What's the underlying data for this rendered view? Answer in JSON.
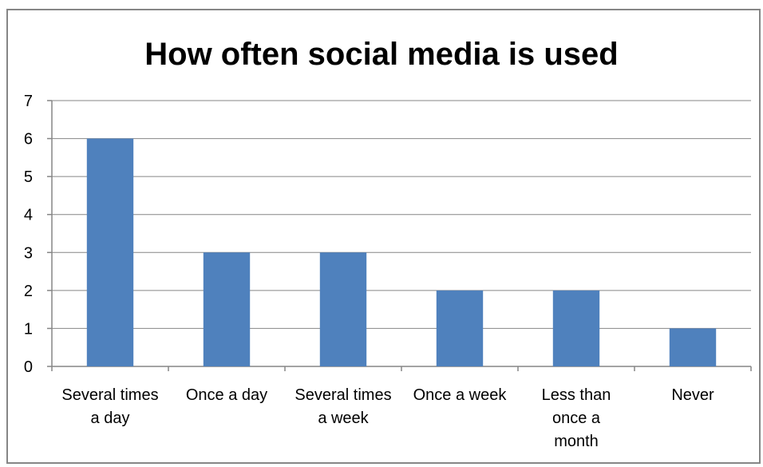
{
  "chart_data": {
    "type": "bar",
    "title": "How often social media is used",
    "categories": [
      [
        "Several times",
        "a day"
      ],
      [
        "Once a day"
      ],
      [
        "Several times",
        "a week"
      ],
      [
        "Once a week"
      ],
      [
        "Less than",
        "once a",
        "month"
      ],
      [
        "Never"
      ]
    ],
    "values": [
      6,
      3,
      3,
      2,
      2,
      1
    ],
    "ylim": [
      0,
      7
    ],
    "yticks": [
      0,
      1,
      2,
      3,
      4,
      5,
      6,
      7
    ],
    "grid": true,
    "legend": "none",
    "colors": {
      "bar": "#4F81BD",
      "gridline": "#868686",
      "axis": "#868686",
      "frame": "#868686"
    }
  }
}
